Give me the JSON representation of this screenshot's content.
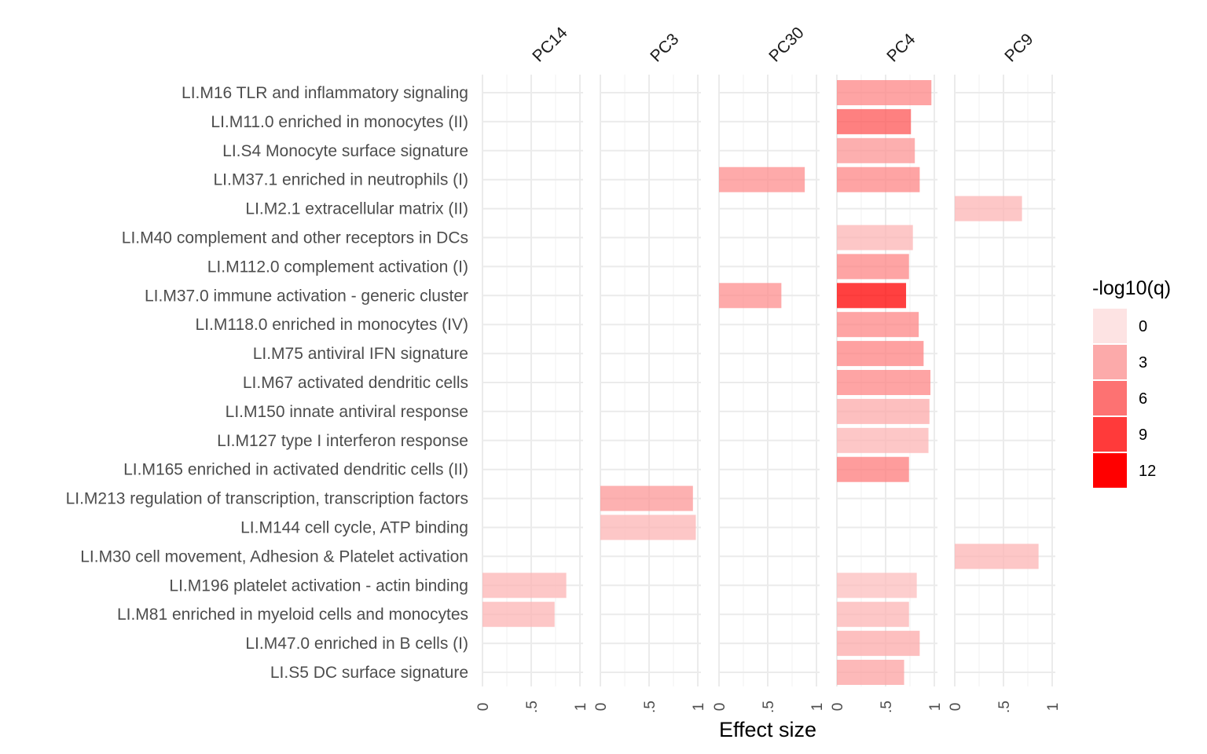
{
  "chart_data": {
    "type": "bar",
    "orientation": "horizontal",
    "xlabel": "Effect size",
    "facets": [
      "PC14",
      "PC3",
      "PC30",
      "PC4",
      "PC9"
    ],
    "xlim": [
      0,
      1
    ],
    "x_ticks": [
      0,
      0.5,
      1
    ],
    "x_tick_labels": [
      "0",
      ".5",
      "1"
    ],
    "grid": true,
    "categories": [
      "LI.M16 TLR and inflammatory signaling",
      "LI.M11.0 enriched in monocytes (II)",
      "LI.S4 Monocyte surface signature",
      "LI.M37.1 enriched in neutrophils (I)",
      "LI.M2.1 extracellular matrix (II)",
      "LI.M40 complement and other receptors in DCs",
      "LI.M112.0 complement activation (I)",
      "LI.M37.0 immune activation - generic cluster",
      "LI.M118.0 enriched in monocytes (IV)",
      "LI.M75 antiviral IFN signature",
      "LI.M67 activated dendritic cells",
      "LI.M150 innate antiviral response",
      "LI.M127 type I interferon response",
      "LI.M165 enriched in activated dendritic cells (II)",
      "LI.M213 regulation of transcription, transcription factors",
      "LI.M144 cell cycle, ATP binding",
      "LI.M30 cell movement, Adhesion & Platelet activation",
      "LI.M196 platelet activation - actin binding",
      "LI.M81 enriched in myeloid cells and monocytes",
      "LI.M47.0 enriched in B cells (I)",
      "LI.S5 DC surface signature"
    ],
    "bars": [
      {
        "facet": "PC4",
        "category": "LI.M16 TLR and inflammatory signaling",
        "effect": 0.97,
        "neglog10q": 5.0
      },
      {
        "facet": "PC4",
        "category": "LI.M11.0 enriched in monocytes (II)",
        "effect": 0.76,
        "neglog10q": 7.5
      },
      {
        "facet": "PC4",
        "category": "LI.S4 Monocyte surface signature",
        "effect": 0.8,
        "neglog10q": 4.2
      },
      {
        "facet": "PC30",
        "category": "LI.M37.1 enriched in neutrophils (I)",
        "effect": 0.88,
        "neglog10q": 4.5
      },
      {
        "facet": "PC4",
        "category": "LI.M37.1 enriched in neutrophils (I)",
        "effect": 0.85,
        "neglog10q": 5.0
      },
      {
        "facet": "PC9",
        "category": "LI.M2.1 extracellular matrix (II)",
        "effect": 0.69,
        "neglog10q": 2.5
      },
      {
        "facet": "PC4",
        "category": "LI.M40 complement and other receptors in DCs",
        "effect": 0.78,
        "neglog10q": 2.5
      },
      {
        "facet": "PC4",
        "category": "LI.M112.0 complement activation (I)",
        "effect": 0.74,
        "neglog10q": 5.0
      },
      {
        "facet": "PC30",
        "category": "LI.M37.0 immune activation - generic cluster",
        "effect": 0.64,
        "neglog10q": 4.5
      },
      {
        "facet": "PC4",
        "category": "LI.M37.0 immune activation - generic cluster",
        "effect": 0.71,
        "neglog10q": 12.0
      },
      {
        "facet": "PC4",
        "category": "LI.M118.0 enriched in monocytes (IV)",
        "effect": 0.84,
        "neglog10q": 5.0
      },
      {
        "facet": "PC4",
        "category": "LI.M75 antiviral IFN signature",
        "effect": 0.89,
        "neglog10q": 5.2
      },
      {
        "facet": "PC4",
        "category": "LI.M67 activated dendritic cells",
        "effect": 0.96,
        "neglog10q": 5.0
      },
      {
        "facet": "PC4",
        "category": "LI.M150 innate antiviral response",
        "effect": 0.95,
        "neglog10q": 3.0
      },
      {
        "facet": "PC4",
        "category": "LI.M127 type I interferon response",
        "effect": 0.94,
        "neglog10q": 2.5
      },
      {
        "facet": "PC4",
        "category": "LI.M165 enriched in activated dendritic cells (II)",
        "effect": 0.74,
        "neglog10q": 5.5
      },
      {
        "facet": "PC3",
        "category": "LI.M213 regulation of transcription, transcription factors",
        "effect": 0.95,
        "neglog10q": 4.0
      },
      {
        "facet": "PC3",
        "category": "LI.M144 cell cycle, ATP binding",
        "effect": 0.98,
        "neglog10q": 2.5
      },
      {
        "facet": "PC9",
        "category": "LI.M30 cell movement, Adhesion & Platelet activation",
        "effect": 0.86,
        "neglog10q": 2.5
      },
      {
        "facet": "PC14",
        "category": "LI.M196 platelet activation - actin binding",
        "effect": 0.86,
        "neglog10q": 2.5
      },
      {
        "facet": "PC4",
        "category": "LI.M196 platelet activation - actin binding",
        "effect": 0.82,
        "neglog10q": 2.0
      },
      {
        "facet": "PC14",
        "category": "LI.M81 enriched in myeloid cells and monocytes",
        "effect": 0.74,
        "neglog10q": 2.5
      },
      {
        "facet": "PC4",
        "category": "LI.M81 enriched in myeloid cells and monocytes",
        "effect": 0.74,
        "neglog10q": 2.5
      },
      {
        "facet": "PC4",
        "category": "LI.M47.0 enriched in B cells (I)",
        "effect": 0.85,
        "neglog10q": 3.0
      },
      {
        "facet": "PC4",
        "category": "LI.S5 DC surface signature",
        "effect": 0.69,
        "neglog10q": 3.5
      }
    ],
    "legend": {
      "title": "-log10(q)",
      "position": "right",
      "labels": [
        "0",
        "3",
        "6",
        "9",
        "12"
      ],
      "values": [
        0,
        3,
        6,
        9,
        12
      ],
      "colors": [
        "#fde3e3",
        "#fcaaaa",
        "#fd7272",
        "#ff3a3a",
        "#ff0000"
      ]
    },
    "bar_opacity": 0.75
  }
}
